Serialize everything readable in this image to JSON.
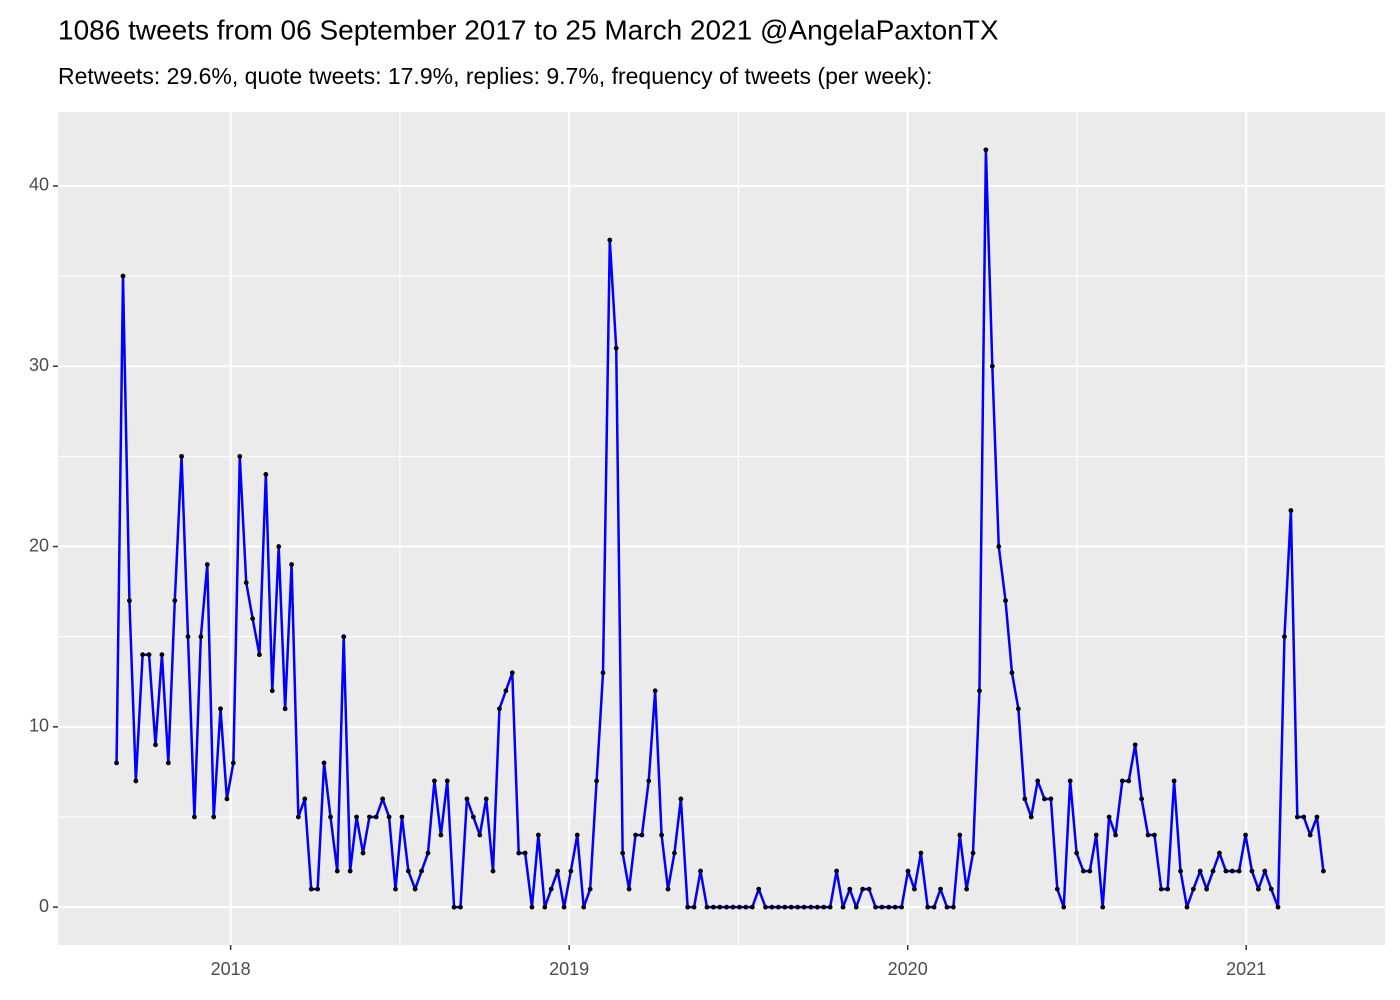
{
  "chart_data": {
    "type": "line",
    "title": "1086 tweets from 06 September 2017 to 25 March 2021 @AngelaPaxtonTX",
    "subtitle": "Retweets: 29.6%, quote tweets: 17.9%, replies: 9.7%, frequency of tweets (per week):",
    "x": [
      2017.663,
      2017.682,
      2017.701,
      2017.72,
      2017.74,
      2017.759,
      2017.778,
      2017.797,
      2017.816,
      2017.835,
      2017.855,
      2017.874,
      2017.893,
      2017.912,
      2017.931,
      2017.95,
      2017.97,
      2017.989,
      2018.008,
      2018.027,
      2018.046,
      2018.065,
      2018.085,
      2018.104,
      2018.123,
      2018.142,
      2018.161,
      2018.18,
      2018.2,
      2018.219,
      2018.238,
      2018.257,
      2018.276,
      2018.295,
      2018.315,
      2018.334,
      2018.353,
      2018.372,
      2018.391,
      2018.41,
      2018.43,
      2018.449,
      2018.468,
      2018.487,
      2018.506,
      2018.525,
      2018.545,
      2018.564,
      2018.583,
      2018.602,
      2018.621,
      2018.64,
      2018.66,
      2018.679,
      2018.698,
      2018.717,
      2018.736,
      2018.755,
      2018.775,
      2018.794,
      2018.813,
      2018.832,
      2018.851,
      2018.87,
      2018.89,
      2018.909,
      2018.928,
      2018.947,
      2018.966,
      2018.985,
      2019.005,
      2019.024,
      2019.043,
      2019.062,
      2019.081,
      2019.1,
      2019.12,
      2019.139,
      2019.158,
      2019.177,
      2019.196,
      2019.215,
      2019.235,
      2019.254,
      2019.273,
      2019.292,
      2019.311,
      2019.33,
      2019.35,
      2019.369,
      2019.388,
      2019.407,
      2019.426,
      2019.445,
      2019.465,
      2019.484,
      2019.503,
      2019.522,
      2019.541,
      2019.56,
      2019.58,
      2019.599,
      2019.618,
      2019.637,
      2019.656,
      2019.675,
      2019.694,
      2019.714,
      2019.733,
      2019.752,
      2019.771,
      2019.79,
      2019.809,
      2019.829,
      2019.848,
      2019.867,
      2019.886,
      2019.905,
      2019.924,
      2019.944,
      2019.963,
      2019.982,
      2020.001,
      2020.02,
      2020.039,
      2020.059,
      2020.078,
      2020.097,
      2020.116,
      2020.135,
      2020.154,
      2020.174,
      2020.193,
      2020.212,
      2020.231,
      2020.25,
      2020.269,
      2020.289,
      2020.308,
      2020.327,
      2020.346,
      2020.365,
      2020.384,
      2020.404,
      2020.423,
      2020.442,
      2020.461,
      2020.48,
      2020.499,
      2020.519,
      2020.538,
      2020.557,
      2020.576,
      2020.595,
      2020.614,
      2020.634,
      2020.653,
      2020.672,
      2020.691,
      2020.71,
      2020.729,
      2020.749,
      2020.768,
      2020.787,
      2020.806,
      2020.825,
      2020.844,
      2020.864,
      2020.883,
      2020.902,
      2020.921,
      2020.94,
      2020.959,
      2020.979,
      2020.998,
      2021.017,
      2021.036,
      2021.055,
      2021.074,
      2021.094,
      2021.113,
      2021.132,
      2021.151,
      2021.17,
      2021.189,
      2021.209,
      2021.228
    ],
    "series": [
      {
        "color": "#0000ff",
        "point_color": "#000000",
        "values": [
          8,
          35,
          17,
          7,
          14,
          14,
          9,
          14,
          8,
          17,
          25,
          15,
          5,
          15,
          19,
          5,
          11,
          6,
          8,
          25,
          18,
          16,
          14,
          24,
          12,
          20,
          11,
          19,
          5,
          6,
          1,
          1,
          8,
          5,
          2,
          15,
          2,
          5,
          3,
          5,
          5,
          6,
          5,
          1,
          5,
          2,
          1,
          2,
          3,
          7,
          4,
          7,
          0,
          0,
          6,
          5,
          4,
          6,
          2,
          11,
          12,
          13,
          3,
          3,
          0,
          4,
          0,
          1,
          2,
          0,
          2,
          4,
          0,
          1,
          7,
          13,
          37,
          31,
          3,
          1,
          4,
          4,
          7,
          12,
          4,
          1,
          3,
          6,
          0,
          0,
          2,
          0,
          0,
          0,
          0,
          0,
          0,
          0,
          0,
          1,
          0,
          0,
          0,
          0,
          0,
          0,
          0,
          0,
          0,
          0,
          0,
          2,
          0,
          1,
          0,
          1,
          1,
          0,
          0,
          0,
          0,
          0,
          2,
          1,
          3,
          0,
          0,
          1,
          0,
          0,
          4,
          1,
          3,
          12,
          42,
          30,
          20,
          17,
          13,
          11,
          6,
          5,
          7,
          6,
          6,
          1,
          0,
          7,
          3,
          2,
          2,
          4,
          0,
          5,
          4,
          7,
          7,
          9,
          6,
          4,
          4,
          1,
          1,
          7,
          2,
          0,
          1,
          2,
          1,
          2,
          3,
          2,
          2,
          2,
          4,
          2,
          1,
          2,
          1,
          0,
          15,
          22,
          5,
          5,
          4,
          5,
          2
        ]
      }
    ],
    "xlim": [
      2017.49,
      2021.41
    ],
    "xticks": [
      2018,
      2019,
      2020,
      2021
    ],
    "ylim": [
      -2.1,
      44.1
    ],
    "yticks": [
      0,
      10,
      20,
      30,
      40
    ],
    "grid": true,
    "background": "#ebebeb"
  }
}
